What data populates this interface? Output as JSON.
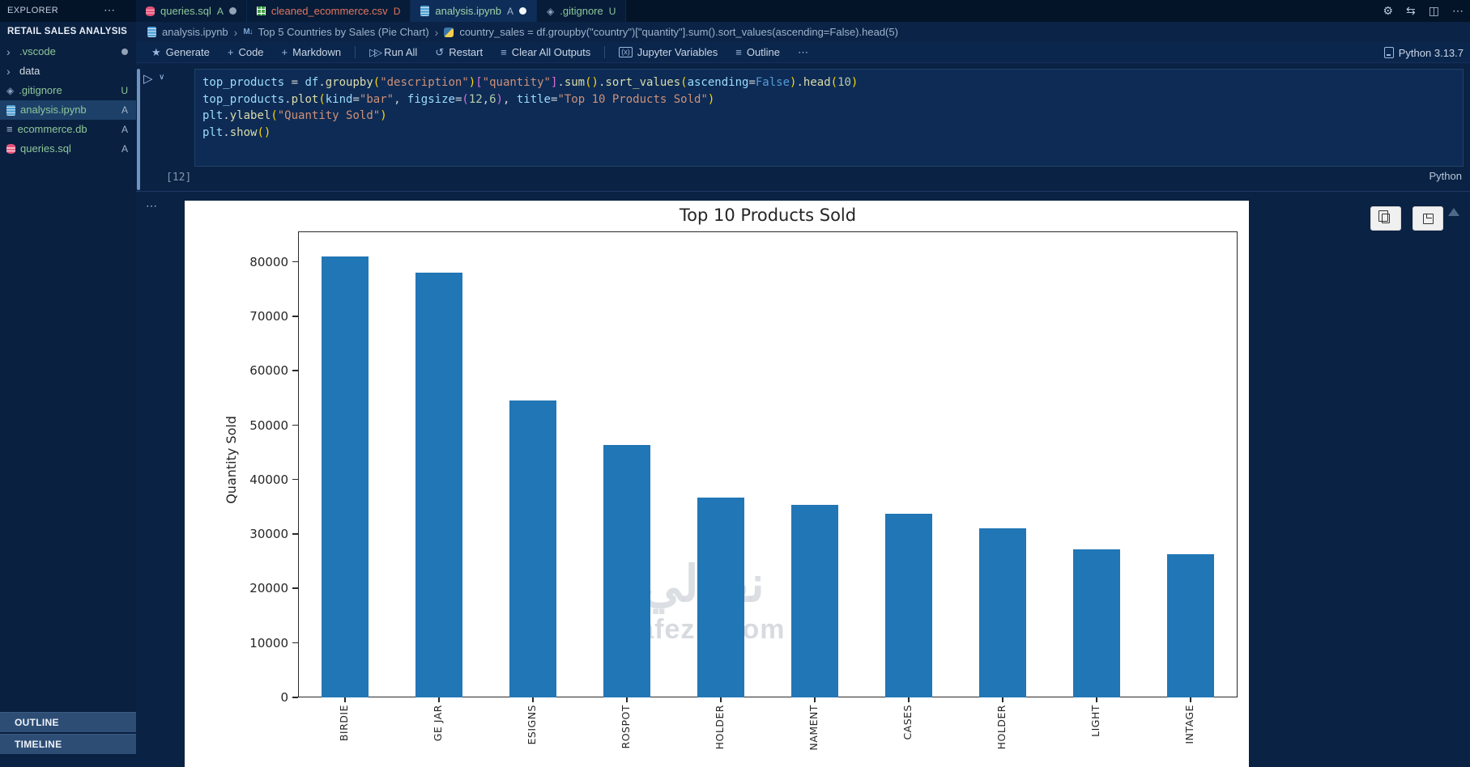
{
  "explorer": {
    "title": "EXPLORER",
    "more": "⋯",
    "workspace": "RETAIL SALES ANALYSIS",
    "files": [
      {
        "label": ".vscode",
        "icon": "chev",
        "color": "#8ec79a",
        "dot": true
      },
      {
        "label": "data",
        "icon": "chev",
        "color": "#d5dce5"
      },
      {
        "label": ".gitignore",
        "icon": "git",
        "color": "#8ec79a",
        "badge": "U",
        "badge_color": "#8ec79a"
      },
      {
        "label": "analysis.ipynb",
        "icon": "book",
        "color": "#8ec79a",
        "badge": "A",
        "badge_color": "#9fb3c8",
        "selected": true
      },
      {
        "label": "ecommerce.db",
        "icon": "lines",
        "color": "#8ec79a",
        "badge": "A",
        "badge_color": "#9fb3c8"
      },
      {
        "label": "queries.sql",
        "icon": "db",
        "color": "#8ec79a",
        "badge": "A",
        "badge_color": "#9fb3c8"
      }
    ],
    "bottom_panels": [
      "OUTLINE",
      "TIMELINE"
    ]
  },
  "tabs": [
    {
      "label": "queries.sql",
      "icon": "db",
      "color": "#8ec79a",
      "badge": "A",
      "badge_color": "#8ec79a",
      "dot": "#93a3b6"
    },
    {
      "label": "cleaned_ecommerce.csv",
      "icon": "table",
      "color": "#e3755f",
      "badge": "D",
      "badge_color": "#e3755f"
    },
    {
      "label": "analysis.ipynb",
      "icon": "book",
      "color": "#9fd3a8",
      "badge": "A",
      "badge_color": "#9fb3c8",
      "dot": "#f2f6fa",
      "active": true
    },
    {
      "label": ".gitignore",
      "icon": "git",
      "color": "#8ec79a",
      "badge": "U",
      "badge_color": "#8ec79a"
    }
  ],
  "editor_actions": [
    {
      "name": "settings-gear-icon",
      "glyph": "⚙"
    },
    {
      "name": "open-changes-icon",
      "glyph": "⇆"
    },
    {
      "name": "split-editor-icon",
      "glyph": "◫"
    },
    {
      "name": "more-actions-icon",
      "glyph": "⋯"
    }
  ],
  "breadcrumb": {
    "file": "analysis.ipynb",
    "sep": "›",
    "md_icon": "M↓",
    "section": "Top 5 Countries by Sales (Pie Chart)",
    "code": "country_sales = df.groupby(\"country\")[\"quantity\"].sum().sort_values(ascending=False).head(5)"
  },
  "toolbar": {
    "items": [
      {
        "glyph": "★",
        "icon": "generate-sparkle-icon",
        "label": "Generate"
      },
      {
        "glyph": "+",
        "icon": "add-icon",
        "label": "Code"
      },
      {
        "glyph": "+",
        "icon": "add-icon",
        "label": "Markdown"
      },
      {
        "sep": true
      },
      {
        "glyph": "▷▷",
        "icon": "run-all-icon",
        "label": "Run All"
      },
      {
        "glyph": "↺",
        "icon": "restart-icon",
        "label": "Restart"
      },
      {
        "glyph": "≡",
        "icon": "clear-outputs-icon",
        "label": "Clear All Outputs"
      },
      {
        "sep": true
      },
      {
        "glyph": "(x)",
        "icon": "variables-icon",
        "label": "Jupyter Variables",
        "boxed": true
      },
      {
        "glyph": "≡",
        "icon": "outline-icon",
        "label": "Outline"
      },
      {
        "glyph": "⋯",
        "icon": "more-icon",
        "label": ""
      }
    ],
    "kernel": "Python 3.13.7"
  },
  "cell": {
    "run_glyph": "▷",
    "run_chev": "∨",
    "exec_count": "[12]",
    "language": "Python",
    "out_more": "⋯",
    "code_lines": [
      [
        [
          "v",
          "top_products"
        ],
        [
          "o",
          " = "
        ],
        [
          "v",
          "df"
        ],
        [
          "o",
          "."
        ],
        [
          "f",
          "groupby"
        ],
        [
          "p1",
          "("
        ],
        [
          "s",
          "\"description\""
        ],
        [
          "p1",
          ")"
        ],
        [
          "p2",
          "["
        ],
        [
          "s",
          "\"quantity\""
        ],
        [
          "p2",
          "]"
        ],
        [
          "o",
          "."
        ],
        [
          "f",
          "sum"
        ],
        [
          "p1",
          "()"
        ],
        [
          "o",
          "."
        ],
        [
          "f",
          "sort_values"
        ],
        [
          "p1",
          "("
        ],
        [
          "v",
          "ascending"
        ],
        [
          "o",
          "="
        ],
        [
          "k",
          "False"
        ],
        [
          "p1",
          ")"
        ],
        [
          "o",
          "."
        ],
        [
          "f",
          "head"
        ],
        [
          "p1",
          "("
        ],
        [
          "n",
          "10"
        ],
        [
          "p1",
          ")"
        ]
      ],
      [
        [
          "v",
          "top_products"
        ],
        [
          "o",
          "."
        ],
        [
          "f",
          "plot"
        ],
        [
          "p1",
          "("
        ],
        [
          "v",
          "kind"
        ],
        [
          "o",
          "="
        ],
        [
          "s",
          "\"bar\""
        ],
        [
          "o",
          ", "
        ],
        [
          "v",
          "figsize"
        ],
        [
          "o",
          "="
        ],
        [
          "p2",
          "("
        ],
        [
          "n",
          "12"
        ],
        [
          "o",
          ","
        ],
        [
          "n",
          "6"
        ],
        [
          "p2",
          ")"
        ],
        [
          "o",
          ", "
        ],
        [
          "v",
          "title"
        ],
        [
          "o",
          "="
        ],
        [
          "s",
          "\"Top 10 Products Sold\""
        ],
        [
          "p1",
          ")"
        ]
      ],
      [
        [
          "v",
          "plt"
        ],
        [
          "o",
          "."
        ],
        [
          "f",
          "ylabel"
        ],
        [
          "p1",
          "("
        ],
        [
          "s",
          "\"Quantity Sold\""
        ],
        [
          "p1",
          ")"
        ]
      ],
      [
        [
          "v",
          "plt"
        ],
        [
          "o",
          "."
        ],
        [
          "f",
          "show"
        ],
        [
          "p1",
          "()"
        ]
      ]
    ]
  },
  "output": {
    "copy_button": "copy",
    "save_button": "save"
  },
  "watermark": {
    "arabic": "نفذلي",
    "latin": "nafezly.com"
  },
  "chart_data": {
    "type": "bar",
    "title": "Top 10 Products Sold",
    "xlabel": "",
    "ylabel": "Quantity Sold",
    "categories_visible_fragments": [
      "BIRDIE",
      "GE JAR",
      "ESIGNS",
      "ROSPOT",
      "HOLDER",
      "NAMENT",
      " CASES",
      "HOLDER",
      " LIGHT",
      "INTAGE"
    ],
    "values": [
      81000,
      78000,
      54500,
      46300,
      36700,
      35400,
      33700,
      31000,
      27200,
      26300
    ],
    "yticks": [
      0,
      10000,
      20000,
      30000,
      40000,
      50000,
      60000,
      70000,
      80000
    ],
    "ylim": [
      0,
      85600
    ],
    "bar_color": "#2176b5",
    "grid": false,
    "legend": false,
    "x_tick_rotation": 90
  }
}
